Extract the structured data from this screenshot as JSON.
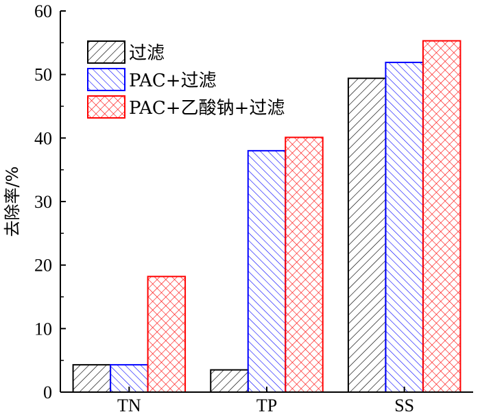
{
  "chart_data": {
    "type": "bar",
    "categories": [
      "TN",
      "TP",
      "SS"
    ],
    "series": [
      {
        "name": "过滤",
        "values": [
          4.3,
          3.5,
          49.4
        ],
        "color": "#000000",
        "pattern": "hatch-forward"
      },
      {
        "name": "PAC+过滤",
        "values": [
          4.3,
          38.0,
          51.9
        ],
        "color": "#0000ff",
        "pattern": "hatch-backward"
      },
      {
        "name": "PAC+乙酸钠+过滤",
        "values": [
          18.2,
          40.1,
          55.3
        ],
        "color": "#ff0000",
        "pattern": "crosshatch"
      }
    ],
    "title": "",
    "xlabel": "",
    "ylabel": "去除率/%",
    "ylim": [
      0,
      60
    ],
    "yticks": [
      0,
      10,
      20,
      30,
      40,
      50,
      60
    ],
    "grid": false,
    "legend_position": "top-left"
  }
}
